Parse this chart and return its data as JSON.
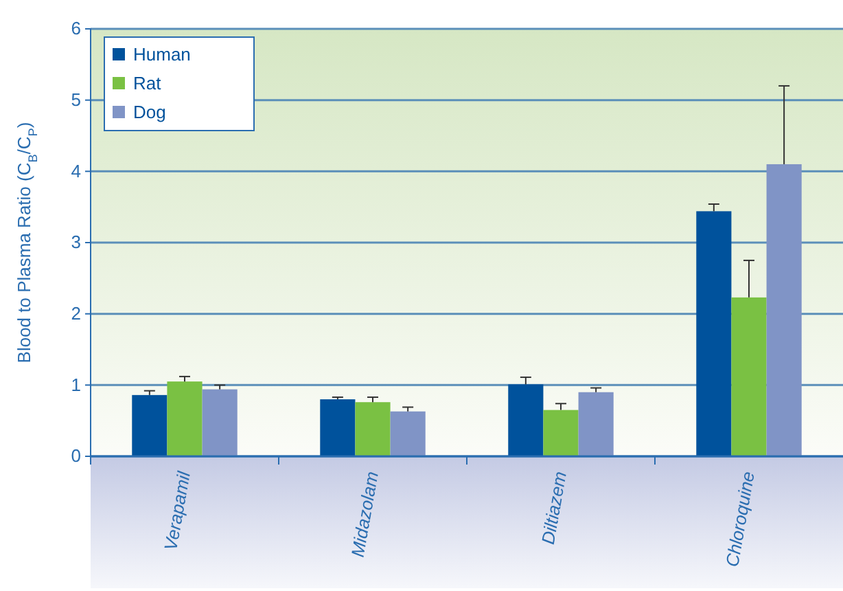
{
  "chart_data": {
    "type": "bar",
    "ylabel": "Blood to Plasma Ratio (C$_{B}$/C$_{P}$)",
    "categories": [
      "Verapamil",
      "Midazolam",
      "Diltiazem",
      "Chloroquine"
    ],
    "series": [
      {
        "name": "Human",
        "color": "#00529c",
        "values": [
          0.86,
          0.8,
          1.01,
          3.44
        ],
        "errors": [
          0.06,
          0.03,
          0.1,
          0.1
        ]
      },
      {
        "name": "Rat",
        "color": "#7ac143",
        "values": [
          1.05,
          0.76,
          0.65,
          2.23
        ],
        "errors": [
          0.07,
          0.07,
          0.09,
          0.52
        ]
      },
      {
        "name": "Dog",
        "color": "#8094c6",
        "values": [
          0.94,
          0.63,
          0.9,
          4.1
        ],
        "errors": [
          0.06,
          0.06,
          0.06,
          1.1
        ]
      }
    ],
    "ylim": [
      0,
      6
    ],
    "yticks": [
      0,
      1,
      2,
      3,
      4,
      5,
      6
    ],
    "grid": "y",
    "legend": "top left"
  }
}
